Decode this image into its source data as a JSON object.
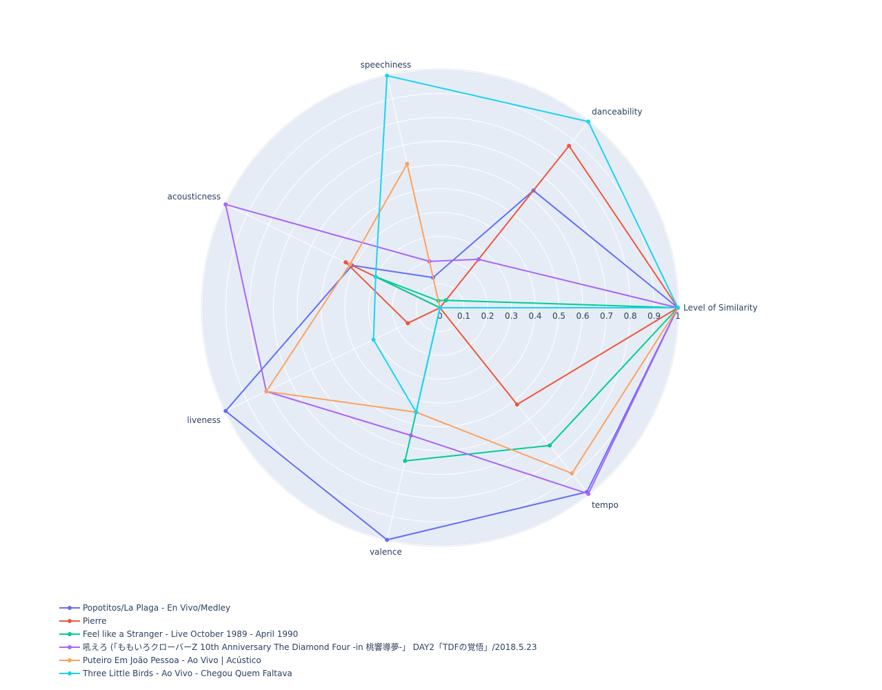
{
  "chart_data": {
    "type": "radar",
    "axes": [
      "Level of Similarity",
      "danceability",
      "speechiness",
      "acousticness",
      "liveness",
      "valence",
      "tempo"
    ],
    "radial_ticks": [
      "0",
      "0.1",
      "0.2",
      "0.3",
      "0.4",
      "0.5",
      "0.6",
      "0.7",
      "0.8",
      "0.9",
      "1"
    ],
    "radial_range": [
      0,
      1
    ],
    "legend_placement": "bottom-left",
    "series": [
      {
        "name": "Popotitos/La Plaga - En Vivo/Medley",
        "color": "#636efa",
        "values": [
          1.0,
          0.63,
          0.13,
          0.41,
          1.0,
          1.0,
          0.99
        ]
      },
      {
        "name": "Pierre",
        "color": "#ef553b",
        "values": [
          1.0,
          0.87,
          0.0,
          0.44,
          0.15,
          0.0,
          0.52
        ]
      },
      {
        "name": "Feel like a Stranger - Live October 1989 - April 1990",
        "color": "#00cc96",
        "values": [
          1.0,
          0.04,
          0.03,
          0.3,
          0.0,
          0.66,
          0.74
        ]
      },
      {
        "name": "吼えろ (「ももいろクローバーZ 10th Anniversary The Diamond Four -in 桃響導夢-」 DAY2「TDFの覚悟」/2018.5.23",
        "color": "#ab63fa",
        "values": [
          1.0,
          0.26,
          0.2,
          1.0,
          0.81,
          0.55,
          1.0
        ]
      },
      {
        "name": "Puteiro Em João Pessoa - Ao Vivo | Acústico",
        "color": "#ffa15a",
        "values": [
          1.0,
          0.0,
          0.62,
          0.42,
          0.81,
          0.45,
          0.89
        ]
      },
      {
        "name": "Three Little Birds - Ao Vivo - Chegou Quem Faltava",
        "color": "#19d3f3",
        "values": [
          1.0,
          1.0,
          1.0,
          0.3,
          0.31,
          0.45,
          0.0
        ]
      }
    ]
  }
}
